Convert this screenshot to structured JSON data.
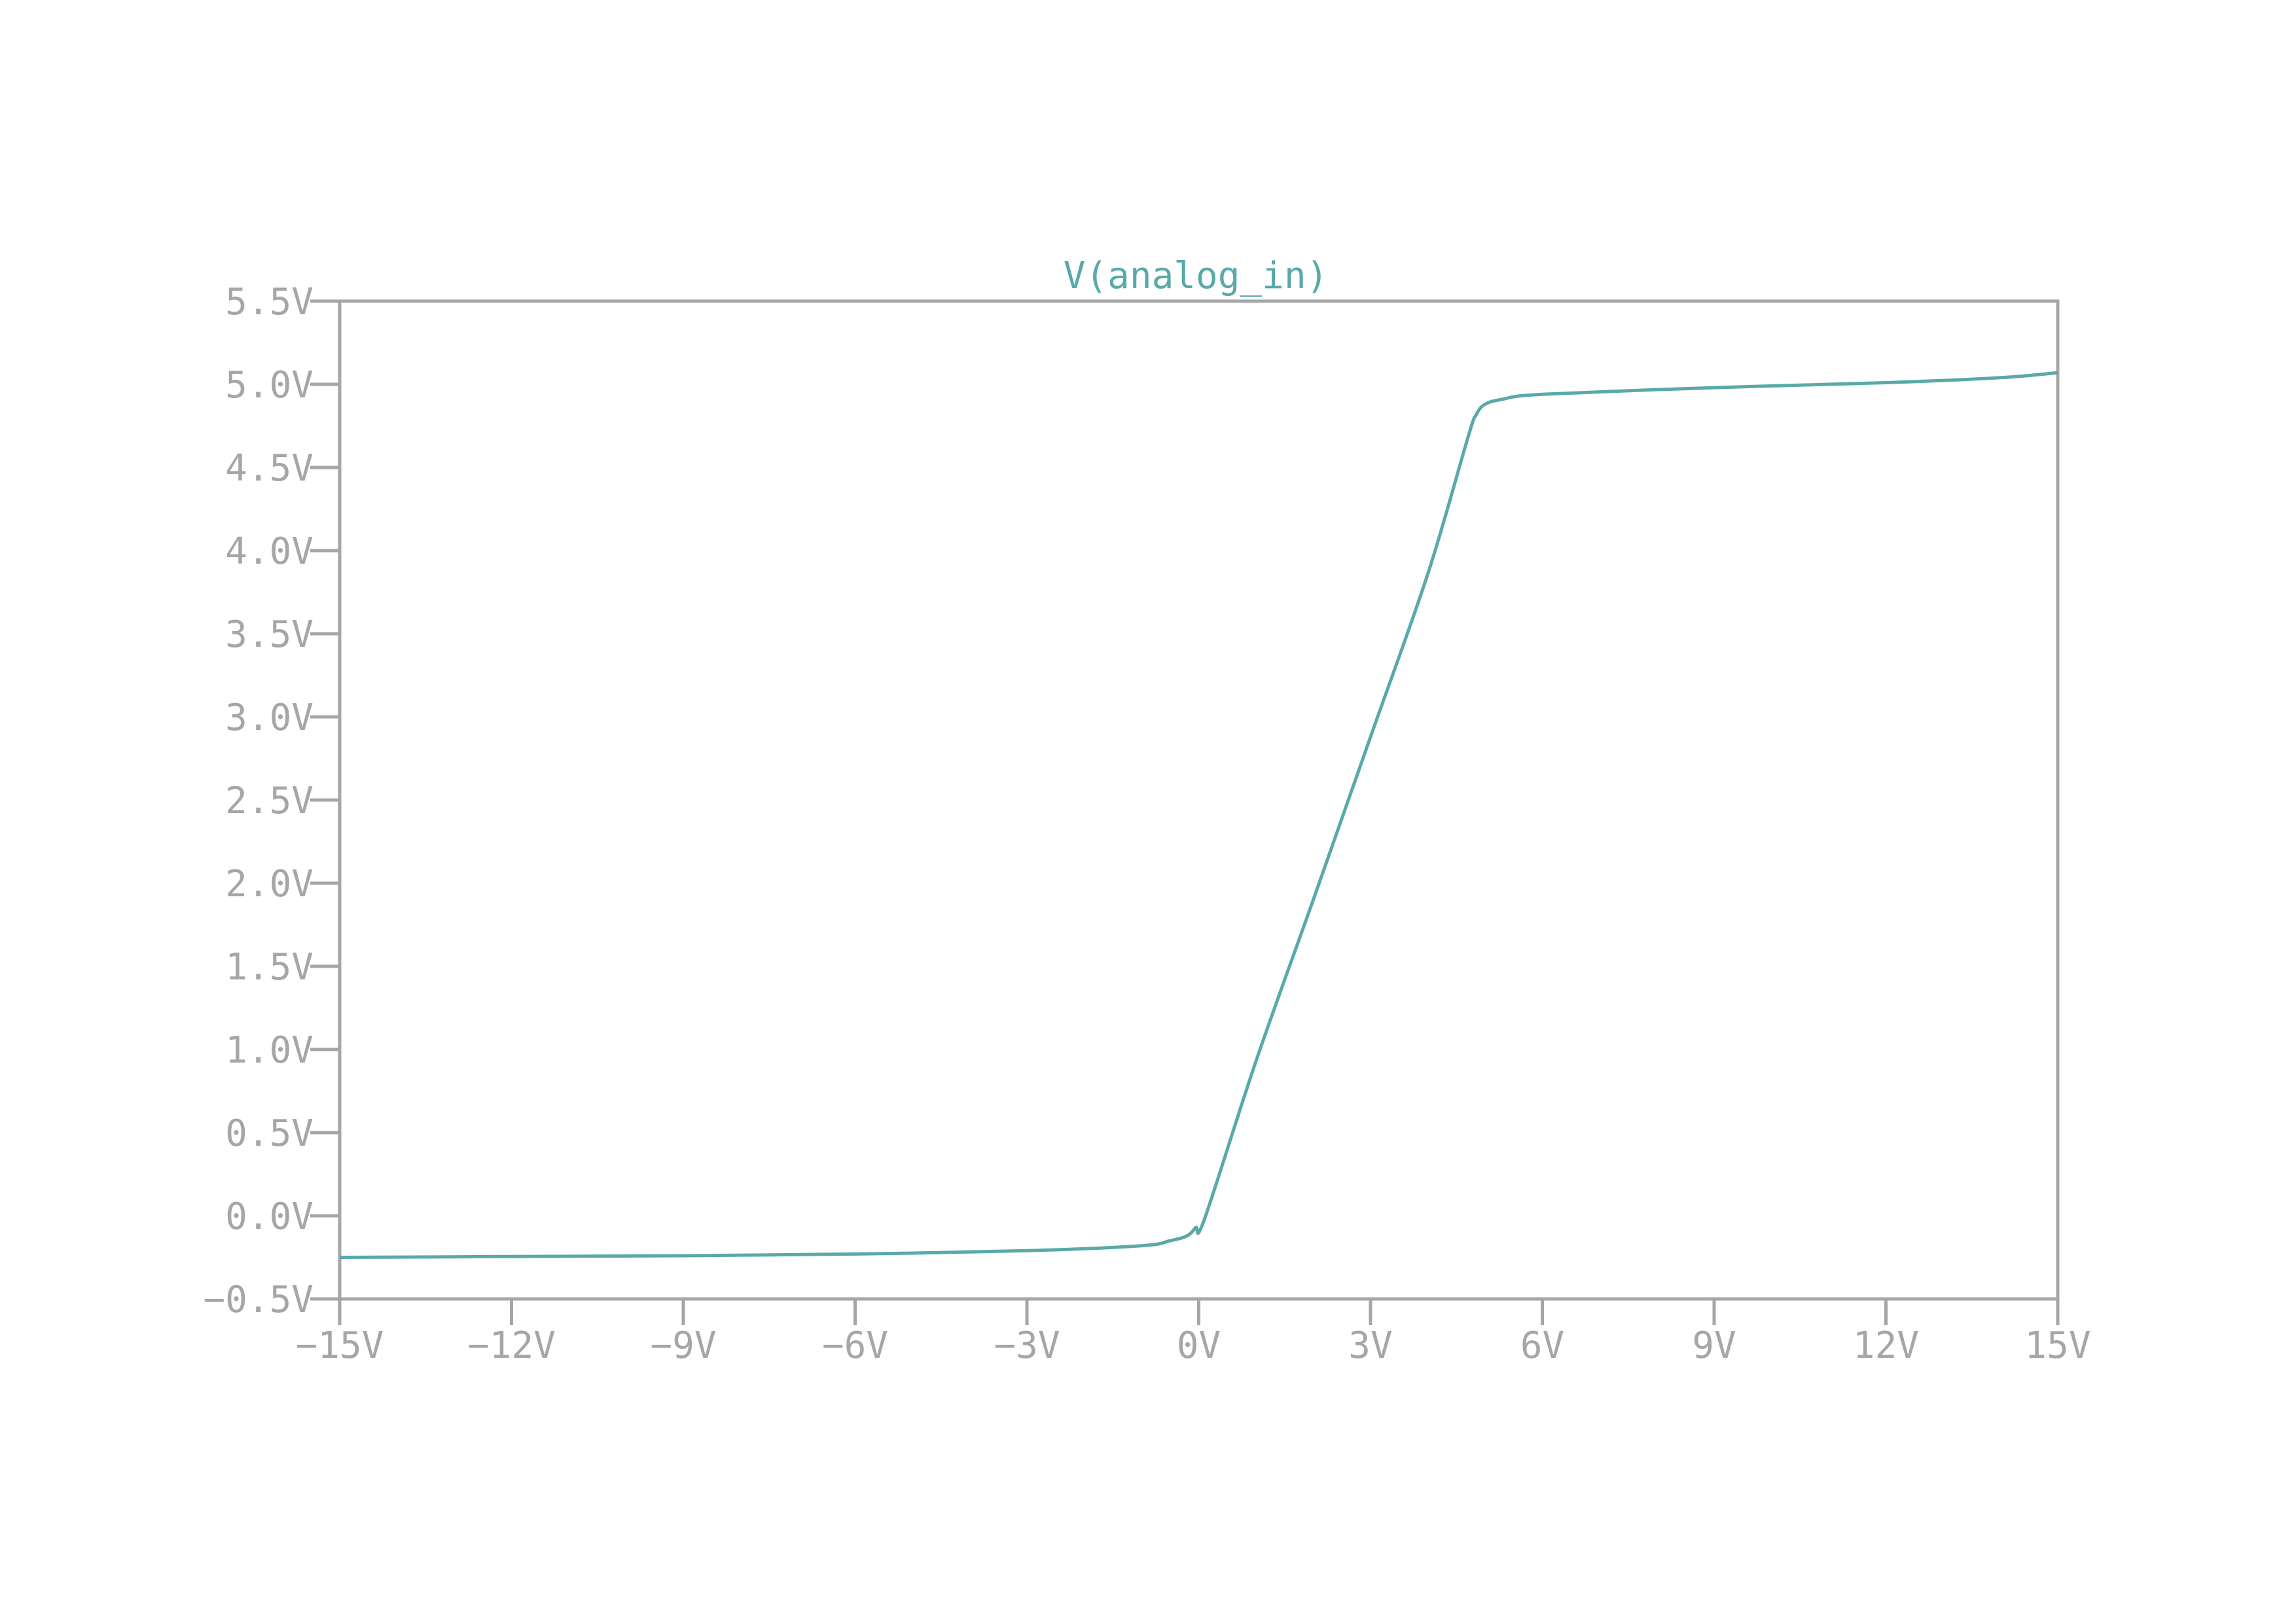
{
  "colors": {
    "series": "#5aa9a9",
    "axis": "#a6a6a6",
    "background": "#ffffff"
  },
  "chart_data": {
    "type": "line",
    "title": "V(analog_in)",
    "xlabel": "",
    "ylabel": "",
    "xlim": [
      -15,
      15
    ],
    "ylim": [
      -0.5,
      5.5
    ],
    "grid": false,
    "legend": "none",
    "x_ticks": [
      -15,
      -12,
      -9,
      -6,
      -3,
      0,
      3,
      6,
      9,
      12,
      15
    ],
    "x_tick_labels": [
      "−15V",
      "−12V",
      "−9V",
      "−6V",
      "−3V",
      "0V",
      "3V",
      "6V",
      "9V",
      "12V",
      "15V"
    ],
    "y_ticks": [
      -0.5,
      0.0,
      0.5,
      1.0,
      1.5,
      2.0,
      2.5,
      3.0,
      3.5,
      4.0,
      4.5,
      5.0,
      5.5
    ],
    "y_tick_labels": [
      "−0.5V",
      "0.0V",
      "0.5V",
      "1.0V",
      "1.5V",
      "2.0V",
      "2.5V",
      "3.0V",
      "3.5V",
      "4.0V",
      "4.5V",
      "5.0V",
      "5.5V"
    ],
    "series": [
      {
        "name": "V(analog_in)",
        "x": [
          -15,
          -12,
          -9,
          -6,
          -3,
          -1,
          -0.5,
          -0.2,
          -0.05,
          0.1,
          1,
          2,
          3,
          4,
          4.7,
          4.85,
          5,
          5.3,
          6,
          9,
          12,
          14,
          15
        ],
        "y": [
          -0.25,
          -0.245,
          -0.24,
          -0.23,
          -0.21,
          -0.18,
          -0.15,
          -0.12,
          -0.07,
          -0.02,
          0.93,
          1.9,
          2.88,
          3.86,
          4.68,
          4.82,
          4.88,
          4.91,
          4.94,
          4.98,
          5.01,
          5.04,
          5.07
        ]
      }
    ]
  }
}
